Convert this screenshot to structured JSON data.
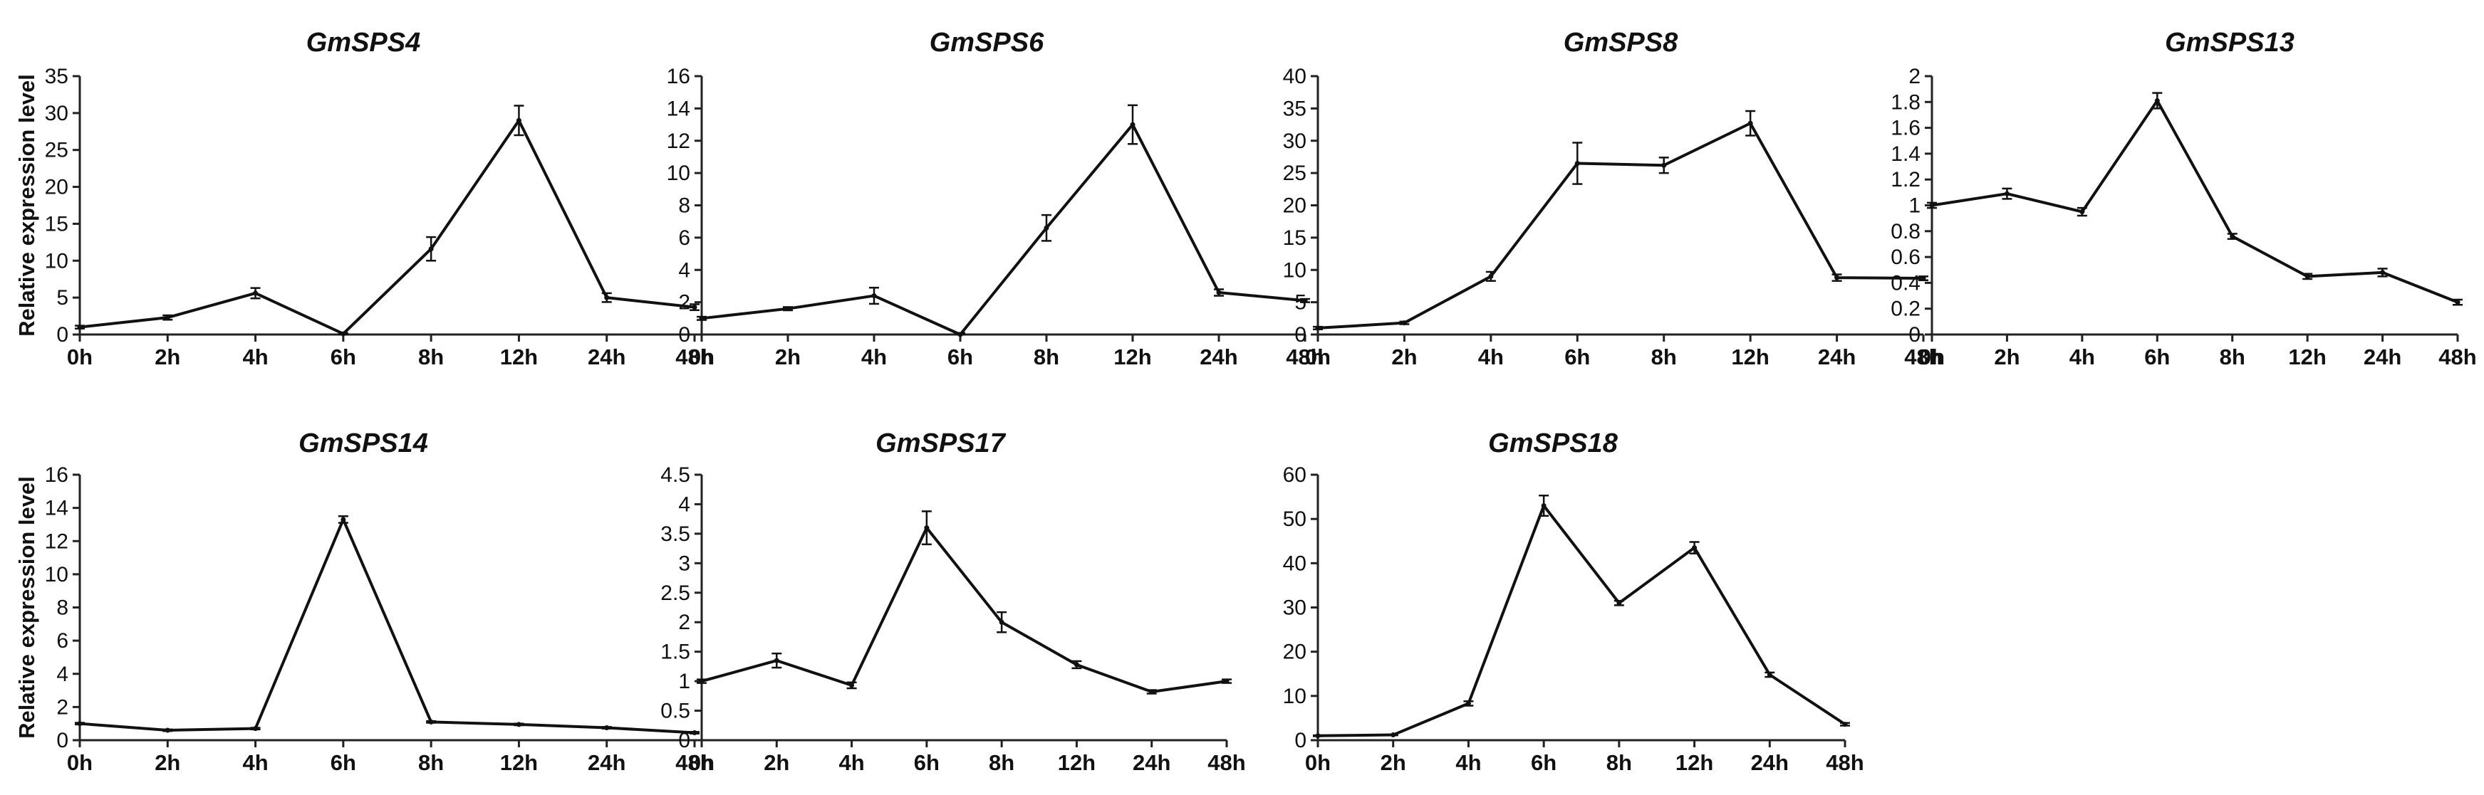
{
  "figure": {
    "ylabel": "Relative expression level"
  },
  "chart_data": [
    {
      "type": "line",
      "title": "GmSPS4",
      "categories": [
        "0h",
        "2h",
        "4h",
        "6h",
        "8h",
        "12h",
        "24h",
        "48h"
      ],
      "values": [
        1.0,
        2.3,
        5.6,
        0.1,
        11.6,
        29.0,
        5.0,
        3.7
      ],
      "errors": [
        0.2,
        0.3,
        0.7,
        0.1,
        1.6,
        2.0,
        0.6,
        0.4
      ],
      "ylim": [
        0,
        35
      ],
      "yticks": [
        0,
        5,
        10,
        15,
        20,
        25,
        30,
        35
      ],
      "ylabel": "Relative expression level",
      "xlabel": ""
    },
    {
      "type": "line",
      "title": "GmSPS6",
      "categories": [
        "0h",
        "2h",
        "4h",
        "6h",
        "8h",
        "12h",
        "24h",
        "48h"
      ],
      "values": [
        1.0,
        1.6,
        2.4,
        0.0,
        6.6,
        13.0,
        2.6,
        2.1
      ],
      "errors": [
        0.1,
        0.1,
        0.5,
        0.1,
        0.8,
        1.2,
        0.2,
        0.1
      ],
      "ylim": [
        0,
        16
      ],
      "yticks": [
        0,
        2,
        4,
        6,
        8,
        10,
        12,
        14,
        16
      ],
      "ylabel": "",
      "xlabel": ""
    },
    {
      "type": "line",
      "title": "GmSPS8",
      "categories": [
        "0h",
        "2h",
        "4h",
        "6h",
        "8h",
        "12h",
        "24h",
        "48h"
      ],
      "values": [
        1.0,
        1.8,
        9.0,
        26.5,
        26.2,
        32.7,
        8.8,
        8.7
      ],
      "errors": [
        0.2,
        0.2,
        0.7,
        3.2,
        1.2,
        1.9,
        0.5,
        0.3
      ],
      "ylim": [
        0,
        40
      ],
      "yticks": [
        0,
        5,
        10,
        15,
        20,
        25,
        30,
        35,
        40
      ],
      "ylabel": "",
      "xlabel": ""
    },
    {
      "type": "line",
      "title": "GmSPS13",
      "categories": [
        "0h",
        "2h",
        "4h",
        "6h",
        "8h",
        "12h",
        "24h",
        "48h"
      ],
      "values": [
        1.0,
        1.09,
        0.95,
        1.81,
        0.76,
        0.45,
        0.48,
        0.25
      ],
      "errors": [
        0.02,
        0.04,
        0.03,
        0.06,
        0.02,
        0.02,
        0.03,
        0.02
      ],
      "ylim": [
        0,
        2
      ],
      "yticks": [
        0,
        0.2,
        0.4,
        0.6,
        0.8,
        1,
        1.2,
        1.4,
        1.6,
        1.8,
        2
      ],
      "ylabel": "",
      "xlabel": ""
    },
    {
      "type": "line",
      "title": "GmSPS14",
      "categories": [
        "0h",
        "2h",
        "4h",
        "6h",
        "8h",
        "12h",
        "24h",
        "48h"
      ],
      "values": [
        1.0,
        0.6,
        0.7,
        13.3,
        1.1,
        0.95,
        0.75,
        0.45
      ],
      "errors": [
        0.05,
        0.05,
        0.05,
        0.2,
        0.05,
        0.05,
        0.05,
        0.05
      ],
      "ylim": [
        0,
        16
      ],
      "yticks": [
        0,
        2,
        4,
        6,
        8,
        10,
        12,
        14,
        16
      ],
      "ylabel": "Relative expression level",
      "xlabel": ""
    },
    {
      "type": "line",
      "title": "GmSPS17",
      "categories": [
        "0h",
        "2h",
        "4h",
        "6h",
        "8h",
        "12h",
        "24h",
        "48h"
      ],
      "values": [
        1.0,
        1.35,
        0.93,
        3.6,
        2.0,
        1.28,
        0.82,
        1.0
      ],
      "errors": [
        0.03,
        0.12,
        0.05,
        0.28,
        0.17,
        0.06,
        0.03,
        0.03
      ],
      "ylim": [
        0,
        4.5
      ],
      "yticks": [
        0,
        0.5,
        1,
        1.5,
        2,
        2.5,
        3,
        3.5,
        4,
        4.5
      ],
      "ylabel": "",
      "xlabel": ""
    },
    {
      "type": "line",
      "title": "GmSPS18",
      "categories": [
        "0h",
        "2h",
        "4h",
        "6h",
        "8h",
        "12h",
        "24h",
        "48h"
      ],
      "values": [
        1.0,
        1.2,
        8.3,
        53.0,
        31.0,
        43.5,
        14.8,
        3.6
      ],
      "errors": [
        0.1,
        0.1,
        0.5,
        2.3,
        0.5,
        1.3,
        0.5,
        0.3
      ],
      "ylim": [
        0,
        60
      ],
      "yticks": [
        0,
        10,
        20,
        30,
        40,
        50,
        60
      ],
      "ylabel": "",
      "xlabel": ""
    }
  ]
}
